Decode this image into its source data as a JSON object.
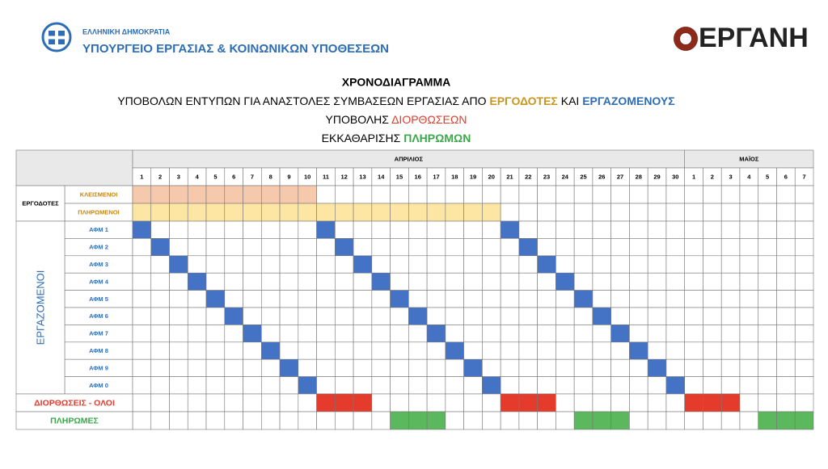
{
  "header": {
    "country": "ΕΛΛΗΝΙΚΗ ΔΗΜΟΚΡΑΤΙΑ",
    "ministry": "ΥΠΟΥΡΓΕΙΟ ΕΡΓΑΣΙΑΣ & ΚΟΙΝΩΝΙΚΩΝ ΥΠΟΘΕΣΕΩΝ",
    "logo": "ΕΡΓΑΝΗ"
  },
  "title": {
    "line1": "ΧΡΟΝΟΔΙΑΓΡΑΜΜΑ",
    "line2": [
      "ΥΠΟΒΟΛΩΝ ΕΝΤΥΠΩΝ ΓΙΑ ΑΝΑΣΤΟΛΕΣ ΣΥΜΒΑΣΕΩΝ ΕΡΓΑΣΙΑΣ ΑΠΟ",
      "ΕΡΓΟΔΟΤΕΣ",
      "ΚΑΙ",
      "ΕΡΓΑΖΟΜΕΝΟΥΣ"
    ],
    "line3": [
      "ΥΠΟΒΟΛΗΣ",
      "ΔΙΟΡΘΩΣΕΩΝ"
    ],
    "line4": [
      "ΕΚΚΑΘΑΡΙΣΗΣ",
      "ΠΛΗΡΩΜΩΝ"
    ]
  },
  "table": {
    "months": [
      {
        "label": "ΑΠΡΙΛΙΟΣ",
        "days": [
          1,
          2,
          3,
          4,
          5,
          6,
          7,
          8,
          9,
          10,
          11,
          12,
          13,
          14,
          15,
          16,
          17,
          18,
          19,
          20,
          21,
          22,
          23,
          24,
          25,
          26,
          27,
          28,
          29,
          30
        ]
      },
      {
        "label": "ΜΑΪΟΣ",
        "days": [
          1,
          2,
          3,
          4,
          5,
          6,
          7
        ]
      }
    ],
    "employers": {
      "label": "ΕΡΓΟΔΟΤΕΣ",
      "rows": [
        "ΚΛΕΙΣΜΕΝΟΙ",
        "ΠΛΗΡΩΜΕΝΟΙ"
      ]
    },
    "employees": {
      "label": "ΕΡΓΑΖΟΜΕΝΟΙ",
      "rows": [
        "ΑΦΜ 1",
        "ΑΦΜ 2",
        "ΑΦΜ 3",
        "ΑΦΜ 4",
        "ΑΦΜ 5",
        "ΑΦΜ 6",
        "ΑΦΜ 7",
        "ΑΦΜ 8",
        "ΑΦΜ 9",
        "ΑΦΜ 0"
      ]
    },
    "corrections": "ΔΙΟΡΘΩΣΕΙΣ - ΟΛΟΙ",
    "payments": "ΠΛΗΡΩΜΕΣ"
  }
}
